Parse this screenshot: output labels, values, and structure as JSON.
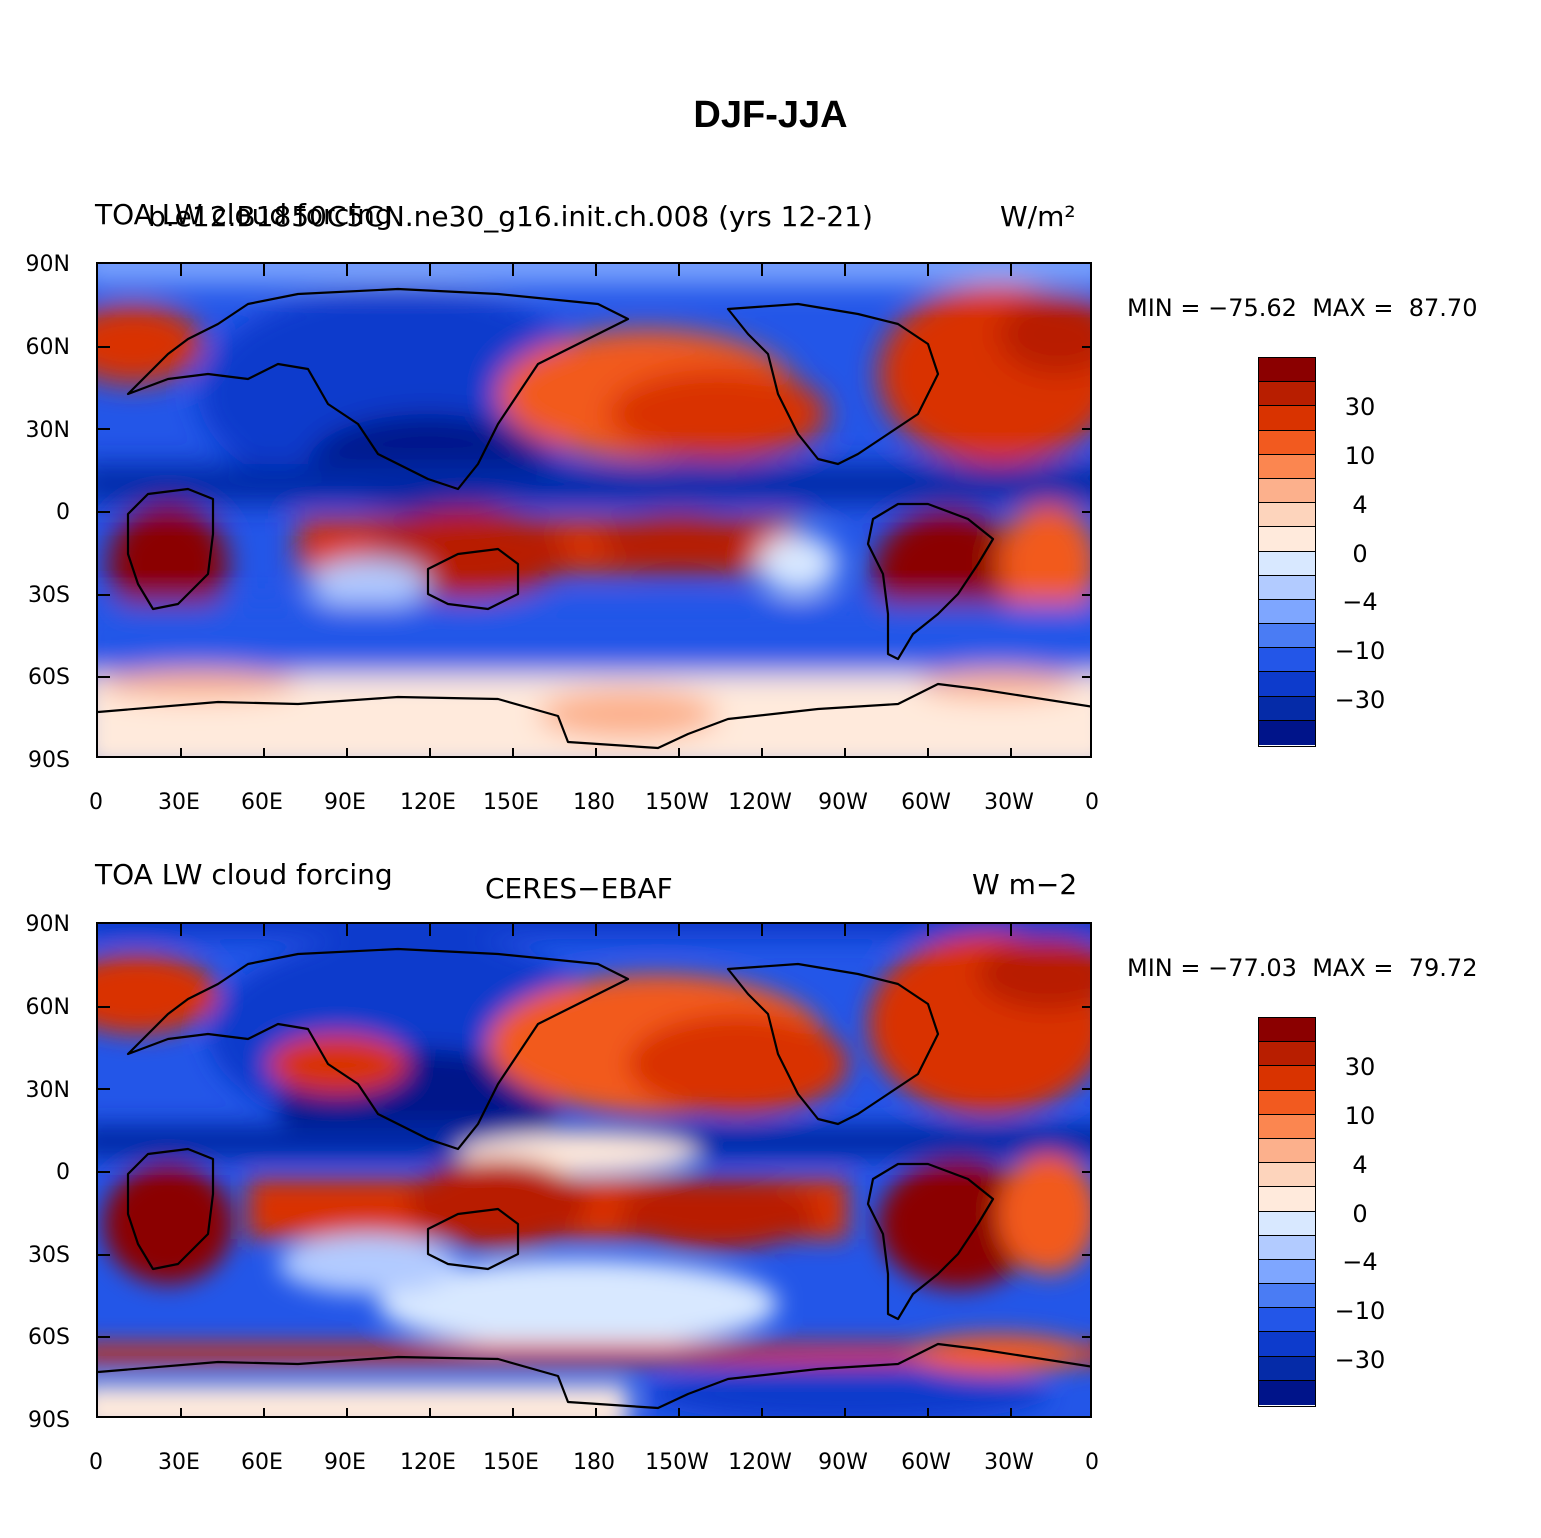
{
  "title": "DJF-JJA",
  "panels": [
    {
      "left_label": "TOA LW cloud forcing",
      "center_label": "b.e12.B1850C5CN.ne30_g16.init.ch.008 (yrs 12-21)",
      "right_label": "W/m²",
      "min_label": "MIN = −75.62",
      "max_label": "MAX =  87.70"
    },
    {
      "left_label": "TOA LW cloud forcing",
      "center_label": "CERES−EBAF",
      "right_label": "W m−2",
      "min_label": "MIN = −77.03",
      "max_label": "MAX =  79.72"
    }
  ],
  "axes": {
    "lat_labels": [
      "90N",
      "60N",
      "30N",
      "0",
      "30S",
      "60S",
      "90S"
    ],
    "lon_labels": [
      "0",
      "30E",
      "60E",
      "90E",
      "120E",
      "150E",
      "180",
      "150W",
      "120W",
      "90W",
      "60W",
      "30W",
      "0"
    ]
  },
  "colorbar": {
    "labels": [
      "30",
      "10",
      "4",
      "0",
      "−4",
      "−10",
      "−30"
    ],
    "colors": [
      "#8b0000",
      "#b81e00",
      "#d93300",
      "#f25a1f",
      "#fb8650",
      "#fcb08c",
      "#fdd4bc",
      "#ffeadc",
      "#d8e8ff",
      "#b2cbff",
      "#7ea6ff",
      "#4a7cf4",
      "#2356e8",
      "#0d3bcc",
      "#052ba8",
      "#00148a"
    ]
  },
  "chart_data": {
    "type": "heatmap",
    "title": "DJF-JJA",
    "units": "W/m²",
    "projection": "cylindrical equidistant, 0 to 360 longitude",
    "x_range": [
      0,
      360
    ],
    "y_range": [
      -90,
      90
    ],
    "contour_levels": [
      -60,
      -40,
      -30,
      -20,
      -10,
      -6,
      -4,
      -2,
      0,
      2,
      4,
      6,
      10,
      20,
      30,
      40,
      60
    ],
    "panels": [
      {
        "name": "b.e12.B1850C5CN.ne30_g16.init.ch.008 (yrs 12-21)",
        "min": -75.62,
        "max": 87.7
      },
      {
        "name": "CERES-EBAF",
        "min": -77.03,
        "max": 79.72
      }
    ]
  }
}
